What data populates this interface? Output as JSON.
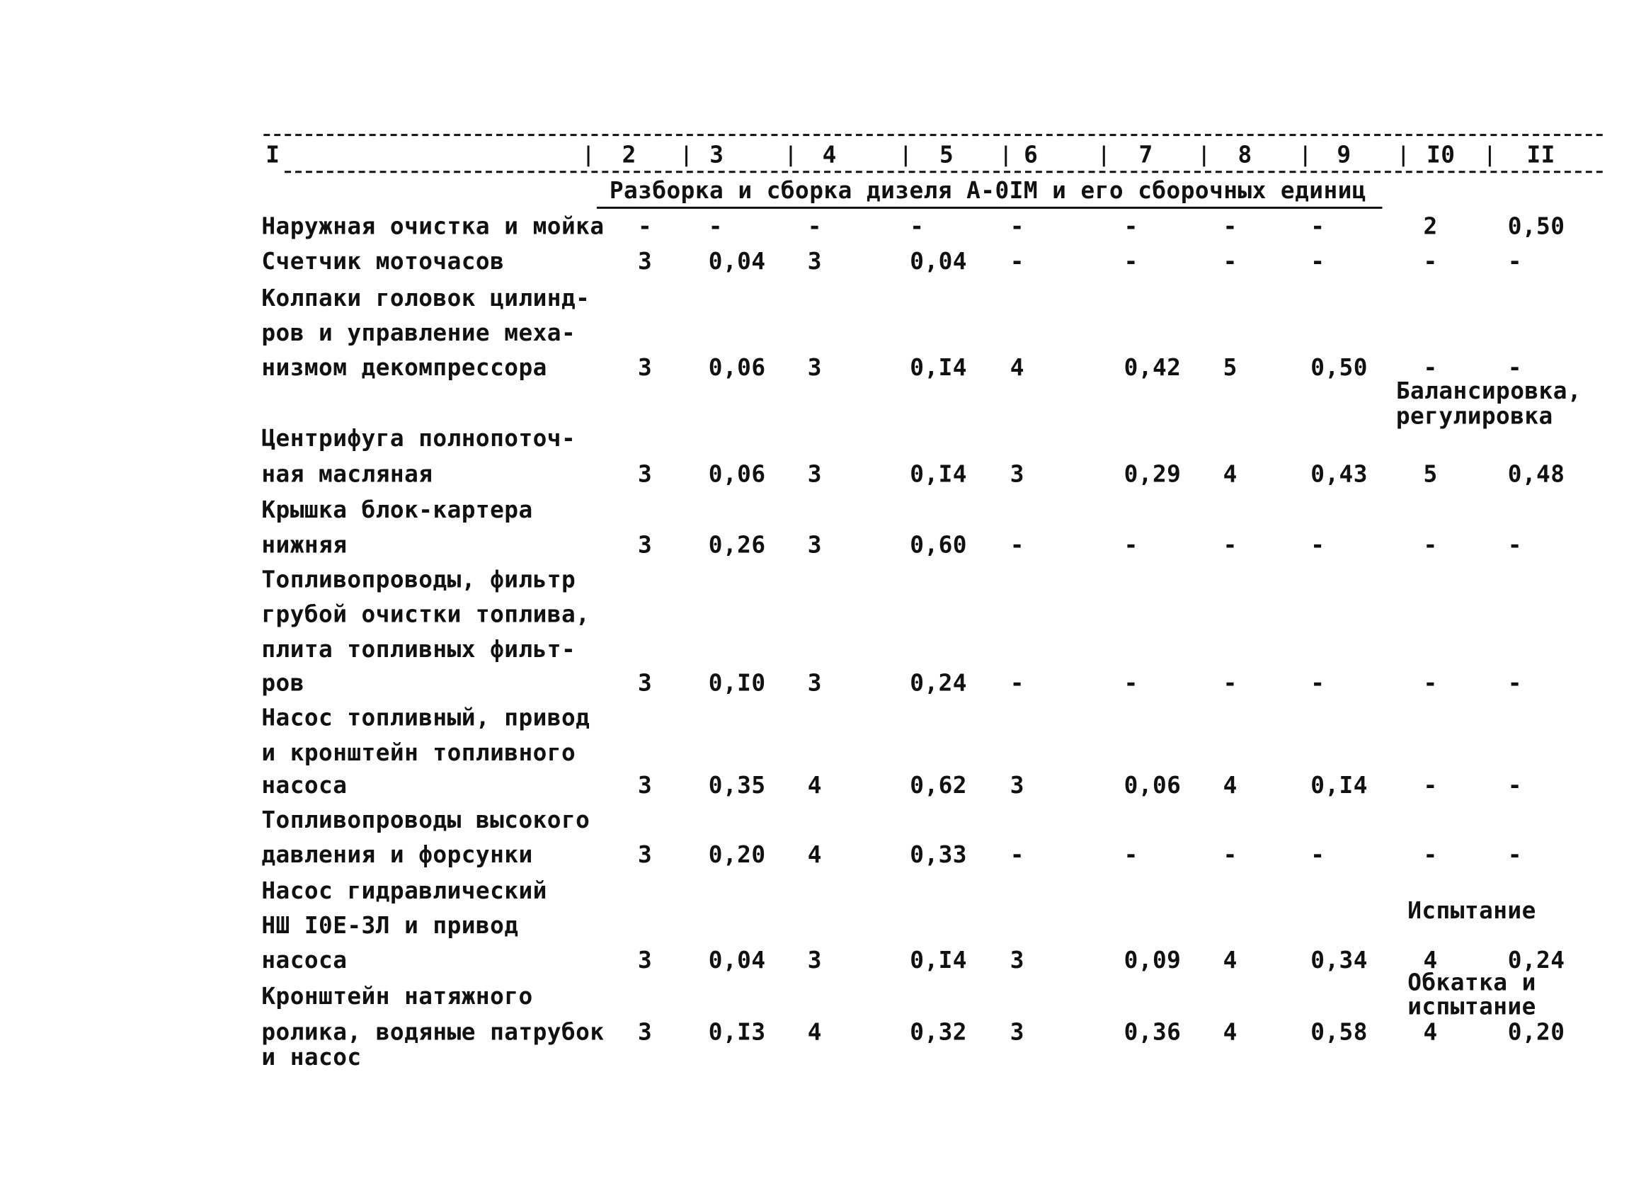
{
  "table": {
    "header": [
      "I",
      "2",
      "3",
      "4",
      "5",
      "6",
      "7",
      "8",
      "9",
      "I0",
      "II"
    ],
    "section_title": "Разборка и сборка дизеля А-0IМ и его сборочных единиц",
    "rows": [
      {
        "name": [
          "Наружная очистка и мойка"
        ],
        "cells": [
          "-",
          "-",
          "-",
          "-",
          "-",
          "-",
          "-",
          "-",
          "2",
          "0,50"
        ]
      },
      {
        "name": [
          "Счетчик моточасов"
        ],
        "cells": [
          "3",
          "0,04",
          "3",
          "0,04",
          "-",
          "-",
          "-",
          "-",
          "-",
          "-"
        ]
      },
      {
        "name": [
          "Колпаки головок цилинд-",
          "ров и управление меха-",
          "низмом декомпрессора"
        ],
        "cells": [
          "3",
          "0,06",
          "3",
          "0,I4",
          "4",
          "0,42",
          "5",
          "0,50",
          "-",
          "-"
        ],
        "note": [
          "Балансировка,",
          "регулировка"
        ]
      },
      {
        "name": [
          "Центрифуга полнопоточ-",
          "ная масляная"
        ],
        "cells": [
          "3",
          "0,06",
          "3",
          "0,I4",
          "3",
          "0,29",
          "4",
          "0,43",
          "5",
          "0,48"
        ]
      },
      {
        "name": [
          "Крышка блок-картера",
          "нижняя"
        ],
        "cells": [
          "3",
          "0,26",
          "3",
          "0,60",
          "-",
          "-",
          "-",
          "-",
          "-",
          "-"
        ]
      },
      {
        "name": [
          "Топливопроводы, фильтр",
          "грубой очистки топлива,",
          "плита топливных фильт-",
          "ров"
        ],
        "cells": [
          "3",
          "0,I0",
          "3",
          "0,24",
          "-",
          "-",
          "-",
          "-",
          "-",
          "-"
        ]
      },
      {
        "name": [
          "Насос топливный, привод",
          "и кронштейн топливного",
          "насоса"
        ],
        "cells": [
          "3",
          "0,35",
          "4",
          "0,62",
          "3",
          "0,06",
          "4",
          "0,I4",
          "-",
          "-"
        ]
      },
      {
        "name": [
          "Топливопроводы высокого",
          "давления и форсунки"
        ],
        "cells": [
          "3",
          "0,20",
          "4",
          "0,33",
          "-",
          "-",
          "-",
          "-",
          "-",
          "-"
        ]
      },
      {
        "name": [
          "Насос гидравлический",
          "НШ I0Е-3Л и привод",
          "насоса"
        ],
        "cells": [
          "3",
          "0,04",
          "3",
          "0,I4",
          "3",
          "0,09",
          "4",
          "0,34",
          "4",
          "0,24"
        ],
        "note": [
          "Испытание"
        ]
      },
      {
        "name": [
          "Кронштейн натяжного",
          "ролика, водяные патрубок",
          "и насос"
        ],
        "cells": [
          "3",
          "0,I3",
          "4",
          "0,32",
          "3",
          "0,36",
          "4",
          "0,58",
          "4",
          "0,20"
        ],
        "note": [
          "Обкатка и",
          "испытание"
        ]
      }
    ]
  }
}
